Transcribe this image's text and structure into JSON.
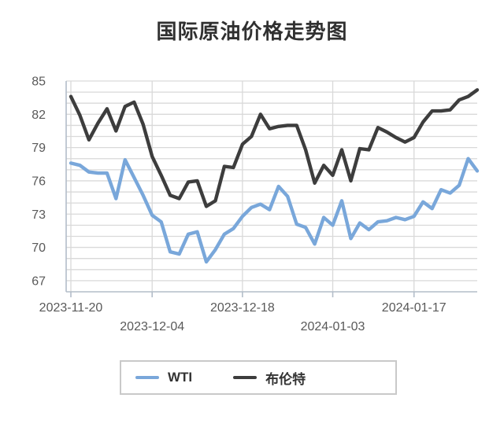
{
  "title": "国际原油价格走势图",
  "chart_data": {
    "type": "line",
    "title": "国际原油价格走势图",
    "x": [
      "2023-11-20",
      "2023-11-21",
      "2023-11-22",
      "2023-11-24",
      "2023-11-27",
      "2023-11-28",
      "2023-11-29",
      "2023-11-30",
      "2023-12-01",
      "2023-12-04",
      "2023-12-05",
      "2023-12-06",
      "2023-12-07",
      "2023-12-08",
      "2023-12-11",
      "2023-12-12",
      "2023-12-13",
      "2023-12-14",
      "2023-12-15",
      "2023-12-18",
      "2023-12-19",
      "2023-12-20",
      "2023-12-21",
      "2023-12-22",
      "2023-12-26",
      "2023-12-27",
      "2023-12-28",
      "2023-12-29",
      "2024-01-02",
      "2024-01-03",
      "2024-01-04",
      "2024-01-05",
      "2024-01-08",
      "2024-01-09",
      "2024-01-10",
      "2024-01-11",
      "2024-01-12",
      "2024-01-16",
      "2024-01-17",
      "2024-01-18",
      "2024-01-19",
      "2024-01-22",
      "2024-01-23",
      "2024-01-24",
      "2024-01-25",
      "2024-01-26"
    ],
    "series": [
      {
        "name": "WTI",
        "color": "#79A7DA",
        "values": [
          77.6,
          77.4,
          76.8,
          76.7,
          76.7,
          74.4,
          77.9,
          76.3,
          74.7,
          72.9,
          72.3,
          69.6,
          69.4,
          71.2,
          71.4,
          68.7,
          69.8,
          71.2,
          71.7,
          72.8,
          73.6,
          73.9,
          73.4,
          75.5,
          74.6,
          72.1,
          71.8,
          70.3,
          72.7,
          72.0,
          74.2,
          70.8,
          72.2,
          71.6,
          72.3,
          72.4,
          72.7,
          72.5,
          72.8,
          74.1,
          73.5,
          75.2,
          74.9,
          75.6,
          78.0,
          76.9
        ]
      },
      {
        "name": "布伦特",
        "color": "#3D3D3D",
        "values": [
          83.6,
          81.9,
          79.7,
          81.2,
          82.5,
          80.5,
          82.7,
          83.1,
          81.1,
          78.2,
          76.5,
          74.7,
          74.4,
          75.9,
          76.0,
          73.7,
          74.2,
          77.3,
          77.2,
          79.3,
          80.0,
          82.0,
          80.7,
          80.9,
          81.0,
          81.0,
          78.8,
          75.8,
          77.4,
          76.5,
          78.8,
          76.0,
          78.9,
          78.8,
          80.8,
          80.4,
          79.9,
          79.5,
          79.9,
          81.3,
          82.3,
          82.3,
          82.4,
          83.3,
          83.6,
          84.2
        ]
      }
    ],
    "ylim": [
      66,
      85
    ],
    "yticks": [
      85,
      82,
      79,
      76,
      73,
      70,
      67
    ],
    "xticks": [
      {
        "label": "2023-11-20",
        "index": 0,
        "row": 1
      },
      {
        "label": "2023-12-04",
        "index": 9,
        "row": 2
      },
      {
        "label": "2023-12-18",
        "index": 19,
        "row": 1
      },
      {
        "label": "2024-01-03",
        "index": 29,
        "row": 2
      },
      {
        "label": "2024-01-17",
        "index": 38,
        "row": 1
      }
    ],
    "grid": true,
    "minor_y_grid_step": 1,
    "legend_position": "bottom"
  },
  "colors": {
    "grid": "#d9d9d9",
    "axis": "#b3bdc9",
    "tick_label": "#595959",
    "title": "#303030",
    "legend_border": "#c9c9c9",
    "background": "#ffffff"
  }
}
